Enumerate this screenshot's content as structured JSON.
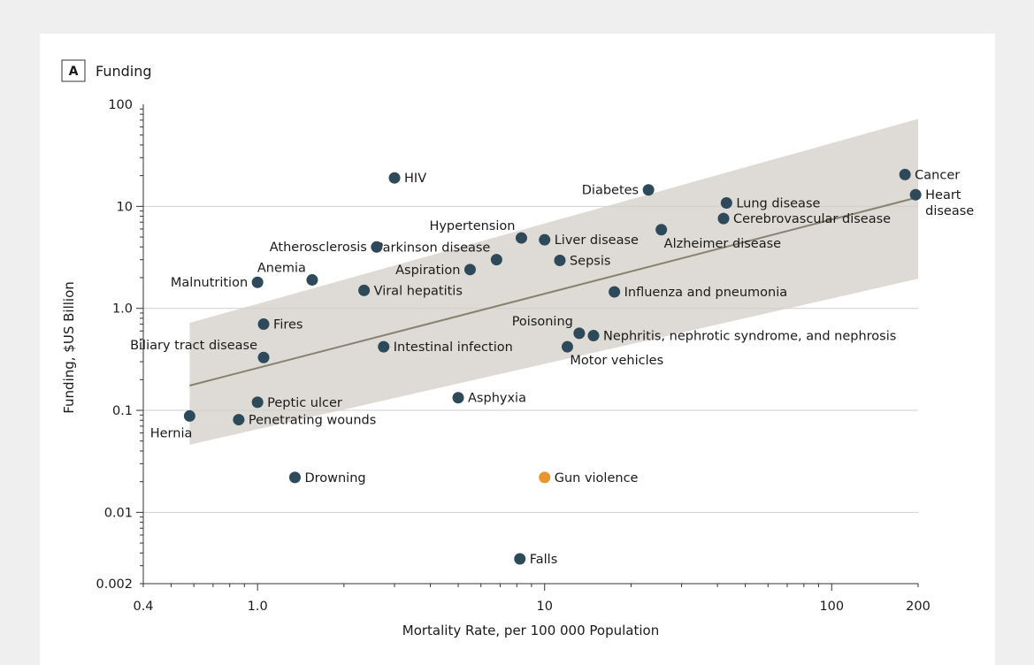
{
  "chart_data": {
    "type": "scatter",
    "panel_letter": "A",
    "title": "Funding",
    "xlabel": "Mortality Rate, per 100 000 Population",
    "ylabel": "Funding, $US Billion",
    "xscale": "log",
    "yscale": "log",
    "xlim": [
      0.4,
      200
    ],
    "ylim": [
      0.002,
      100
    ],
    "xticks": [
      {
        "value": 0.4,
        "label": "0.4"
      },
      {
        "value": 1,
        "label": "1.0"
      },
      {
        "value": 10,
        "label": "10"
      },
      {
        "value": 100,
        "label": "100"
      },
      {
        "value": 200,
        "label": "200"
      }
    ],
    "yticks": [
      {
        "value": 0.002,
        "label": "0.002"
      },
      {
        "value": 0.01,
        "label": "0.01"
      },
      {
        "value": 0.1,
        "label": "0.1"
      },
      {
        "value": 1,
        "label": "1.0"
      },
      {
        "value": 10,
        "label": "10"
      },
      {
        "value": 100,
        "label": "100"
      }
    ],
    "gridlines_y": [
      10,
      1,
      0.1,
      0.01
    ],
    "colors": {
      "point": "#2e4a5a",
      "highlight": "#e8952f",
      "trend": "#85826f",
      "band": "#dedbd6",
      "grid": "#cfcfcf"
    },
    "points": [
      {
        "name": "Cancer",
        "label_lines": [
          "Cancer"
        ],
        "x": 180,
        "y": 20.5,
        "label_pos": "right"
      },
      {
        "name": "Heart disease",
        "label_lines": [
          "Heart",
          "disease"
        ],
        "x": 196,
        "y": 13,
        "label_pos": "right"
      },
      {
        "name": "Lung disease",
        "label_lines": [
          "Lung disease"
        ],
        "x": 43,
        "y": 10.8,
        "label_pos": "right"
      },
      {
        "name": "Cerebrovascular disease",
        "label_lines": [
          "Cerebrovascular disease"
        ],
        "x": 42,
        "y": 7.6,
        "label_pos": "right"
      },
      {
        "name": "Alzheimer disease",
        "label_lines": [
          "Alzheimer disease"
        ],
        "x": 25.5,
        "y": 5.9,
        "label_pos": "below-right"
      },
      {
        "name": "Diabetes",
        "label_lines": [
          "Diabetes"
        ],
        "x": 23,
        "y": 14.5,
        "label_pos": "left"
      },
      {
        "name": "HIV",
        "label_lines": [
          "HIV"
        ],
        "x": 3.0,
        "y": 19,
        "label_pos": "right"
      },
      {
        "name": "Hypertension",
        "label_lines": [
          "Hypertension"
        ],
        "x": 8.3,
        "y": 4.9,
        "label_pos": "above-left"
      },
      {
        "name": "Liver disease",
        "label_lines": [
          "Liver disease"
        ],
        "x": 10,
        "y": 4.7,
        "label_pos": "right"
      },
      {
        "name": "Parkinson disease",
        "label_lines": [
          "Parkinson disease"
        ],
        "x": 6.8,
        "y": 3.0,
        "label_pos": "above-left"
      },
      {
        "name": "Sepsis",
        "label_lines": [
          "Sepsis"
        ],
        "x": 11.3,
        "y": 2.95,
        "label_pos": "right"
      },
      {
        "name": "Aspiration",
        "label_lines": [
          "Aspiration"
        ],
        "x": 5.5,
        "y": 2.4,
        "label_pos": "left"
      },
      {
        "name": "Atherosclerosis",
        "label_lines": [
          "Atherosclerosis"
        ],
        "x": 2.6,
        "y": 4.0,
        "label_pos": "left"
      },
      {
        "name": "Anemia",
        "label_lines": [
          "Anemia"
        ],
        "x": 1.55,
        "y": 1.9,
        "label_pos": "above-left"
      },
      {
        "name": "Malnutrition",
        "label_lines": [
          "Malnutrition"
        ],
        "x": 1.0,
        "y": 1.8,
        "label_pos": "left"
      },
      {
        "name": "Viral hepatitis",
        "label_lines": [
          "Viral hepatitis"
        ],
        "x": 2.35,
        "y": 1.5,
        "label_pos": "right"
      },
      {
        "name": "Influenza and pneumonia",
        "label_lines": [
          "Influenza and pneumonia"
        ],
        "x": 17.5,
        "y": 1.45,
        "label_pos": "right"
      },
      {
        "name": "Fires",
        "label_lines": [
          "Fires"
        ],
        "x": 1.05,
        "y": 0.7,
        "label_pos": "right"
      },
      {
        "name": "Biliary tract disease",
        "label_lines": [
          "Biliary tract disease"
        ],
        "x": 1.05,
        "y": 0.33,
        "label_pos": "above-left"
      },
      {
        "name": "Intestinal infection",
        "label_lines": [
          "Intestinal infection"
        ],
        "x": 2.75,
        "y": 0.42,
        "label_pos": "right"
      },
      {
        "name": "Poisoning",
        "label_lines": [
          "Poisoning"
        ],
        "x": 13.2,
        "y": 0.57,
        "label_pos": "above-left"
      },
      {
        "name": "Nephritis, nephrotic syndrome, and nephrosis",
        "label_lines": [
          "Nephritis, nephrotic syndrome, and nephrosis"
        ],
        "x": 14.8,
        "y": 0.54,
        "label_pos": "right"
      },
      {
        "name": "Motor vehicles",
        "label_lines": [
          "Motor vehicles"
        ],
        "x": 12,
        "y": 0.42,
        "label_pos": "below-right"
      },
      {
        "name": "Asphyxia",
        "label_lines": [
          "Asphyxia"
        ],
        "x": 5.0,
        "y": 0.133,
        "label_pos": "right"
      },
      {
        "name": "Peptic ulcer",
        "label_lines": [
          "Peptic ulcer"
        ],
        "x": 1.0,
        "y": 0.12,
        "label_pos": "right"
      },
      {
        "name": "Hernia",
        "label_lines": [
          "Hernia"
        ],
        "x": 0.58,
        "y": 0.088,
        "label_pos": "below-left"
      },
      {
        "name": "Penetrating wounds",
        "label_lines": [
          "Penetrating wounds"
        ],
        "x": 0.86,
        "y": 0.081,
        "label_pos": "right"
      },
      {
        "name": "Drowning",
        "label_lines": [
          "Drowning"
        ],
        "x": 1.35,
        "y": 0.022,
        "label_pos": "right"
      },
      {
        "name": "Gun violence",
        "label_lines": [
          "Gun violence"
        ],
        "x": 10,
        "y": 0.022,
        "label_pos": "right",
        "highlight": true
      },
      {
        "name": "Falls",
        "label_lines": [
          "Falls"
        ],
        "x": 8.2,
        "y": 0.0035,
        "label_pos": "right"
      }
    ],
    "trend_line": {
      "x": [
        0.58,
        200
      ],
      "y": [
        0.175,
        12.3
      ]
    },
    "confidence_band": {
      "x": [
        0.58,
        200
      ],
      "upper": [
        0.72,
        72
      ],
      "lower": [
        0.046,
        1.95
      ]
    }
  }
}
